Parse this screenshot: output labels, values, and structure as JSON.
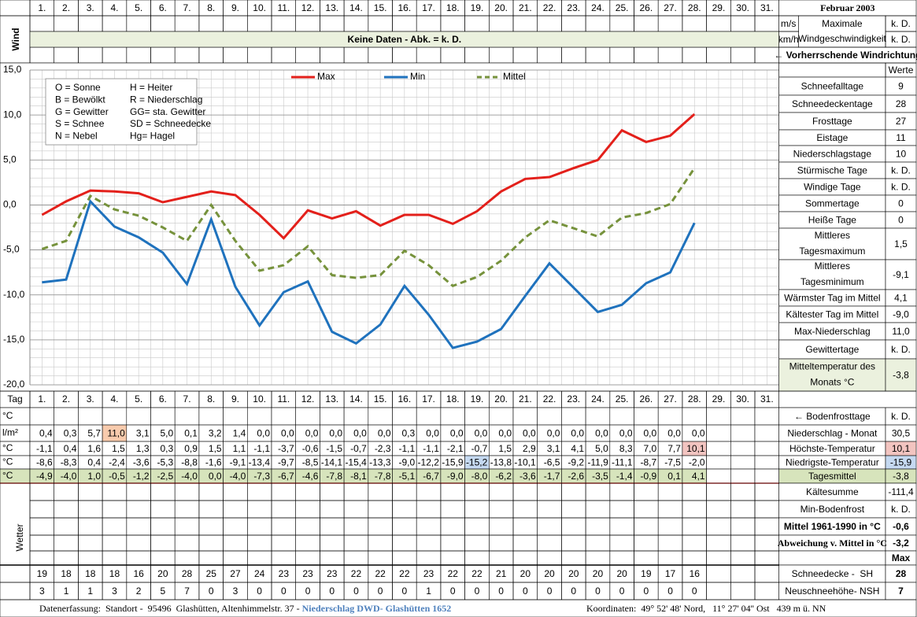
{
  "header": {
    "title": "Februar 2003",
    "days": [
      "1.",
      "2.",
      "3.",
      "4.",
      "5.",
      "6.",
      "7.",
      "8.",
      "9.",
      "10.",
      "11.",
      "12.",
      "13.",
      "14.",
      "15.",
      "16.",
      "17.",
      "18.",
      "19.",
      "20.",
      "21.",
      "22.",
      "23.",
      "24.",
      "25.",
      "26.",
      "27.",
      "28.",
      "29.",
      "30.",
      "31."
    ]
  },
  "wind": {
    "label": "Wind",
    "message": "Keine Daten - Abk. = k. D.",
    "unit_ms": "m/s",
    "unit_kmh": "km/h",
    "max_label": [
      "Maximale",
      "Windgeschwindigkeit"
    ],
    "value_ms": "k. D.",
    "value_kmh": "k. D.",
    "direction": "← Vorherrschende Windrichtung"
  },
  "chart_data": {
    "type": "line",
    "ylim": [
      -20,
      15
    ],
    "yticks": [
      {
        "value": 15,
        "label": "15,0"
      },
      {
        "value": 10,
        "label": "10,0"
      },
      {
        "value": 5,
        "label": "5,0"
      },
      {
        "value": 0,
        "label": "0,0"
      },
      {
        "value": -5,
        "label": "-5,0"
      },
      {
        "value": -10,
        "label": "-10,0"
      },
      {
        "value": -15,
        "label": "-15,0"
      },
      {
        "value": -20,
        "label": "-20,0"
      }
    ],
    "grid": true,
    "legend": "top",
    "categories": [
      "1.",
      "2.",
      "3.",
      "4.",
      "5.",
      "6.",
      "7.",
      "8.",
      "9.",
      "10.",
      "11.",
      "12.",
      "13.",
      "14.",
      "15.",
      "16.",
      "17.",
      "18.",
      "19.",
      "20.",
      "21.",
      "22.",
      "23.",
      "24.",
      "25.",
      "26.",
      "27.",
      "28.",
      "29.",
      "30.",
      "31."
    ],
    "series": [
      {
        "name": "Max",
        "color": "#e3201b",
        "dash": false,
        "values": [
          -1.1,
          0.4,
          1.6,
          1.5,
          1.3,
          0.3,
          0.9,
          1.5,
          1.1,
          -1.1,
          -3.7,
          -0.6,
          -1.5,
          -0.7,
          -2.3,
          -1.1,
          -1.1,
          -2.1,
          -0.7,
          1.5,
          2.9,
          3.1,
          4.1,
          5.0,
          8.3,
          7.0,
          7.7,
          10.1,
          null,
          null,
          null
        ],
        "value_labels": [
          "-1,1",
          "0,4",
          "1,6",
          "1,5",
          "1,3",
          "0,3",
          "0,9",
          "1,5",
          "1,1",
          "-1,1",
          "-3,7",
          "-0,6",
          "-1,5",
          "-0,7",
          "-2,3",
          "-1,1",
          "-1,1",
          "-2,1",
          "-0,7",
          "1,5",
          "2,9",
          "3,1",
          "4,1",
          "5,0",
          "8,3",
          "7,0",
          "7,7",
          "10,1",
          null,
          null,
          null
        ]
      },
      {
        "name": "Min",
        "color": "#1f72bd",
        "dash": false,
        "values": [
          -8.6,
          -8.3,
          0.4,
          -2.4,
          -3.6,
          -5.3,
          -8.8,
          -1.6,
          -9.1,
          -13.4,
          -9.7,
          -8.5,
          -14.1,
          -15.4,
          -13.3,
          -9.0,
          -12.2,
          -15.9,
          -15.2,
          -13.8,
          -10.1,
          -6.5,
          -9.2,
          -11.9,
          -11.1,
          -8.7,
          -7.5,
          -2.0,
          null,
          null,
          null
        ],
        "value_labels": [
          "-8,6",
          "-8,3",
          "0,4",
          "-2,4",
          "-3,6",
          "-5,3",
          "-8,8",
          "-1,6",
          "-9,1",
          "-13,4",
          "-9,7",
          "-8,5",
          "-14,1",
          "-15,4",
          "-13,3",
          "-9,0",
          "-12,2",
          "-15,9",
          "-15,2",
          "-13,8",
          "-10,1",
          "-6,5",
          "-9,2",
          "-11,9",
          "-11,1",
          "-8,7",
          "-7,5",
          "-2,0",
          null,
          null,
          null
        ]
      },
      {
        "name": "Mittel",
        "color": "#76923c",
        "dash": true,
        "values": [
          -4.9,
          -4.0,
          1.0,
          -0.5,
          -1.2,
          -2.5,
          -4.0,
          0.0,
          -4.0,
          -7.3,
          -6.7,
          -4.6,
          -7.8,
          -8.1,
          -7.8,
          -5.1,
          -6.7,
          -9.0,
          -8.0,
          -6.2,
          -3.6,
          -1.7,
          -2.6,
          -3.5,
          -1.4,
          -0.9,
          0.1,
          4.1,
          null,
          null,
          null
        ],
        "value_labels": [
          "-4,9",
          "-4,0",
          "1,0",
          "-0,5",
          "-1,2",
          "-2,5",
          "-4,0",
          "0,0",
          "-4,0",
          "-7,3",
          "-6,7",
          "-4,6",
          "-7,8",
          "-8,1",
          "-7,8",
          "-5,1",
          "-6,7",
          "-9,0",
          "-8,0",
          "-6,2",
          "-3,6",
          "-1,7",
          "-2,6",
          "-3,5",
          "-1,4",
          "-0,9",
          "0,1",
          "4,1",
          null,
          null,
          null
        ]
      }
    ]
  },
  "weather_codes": [
    [
      "O = Sonne",
      "H = Heiter"
    ],
    [
      "B = Bewölkt",
      "R = Niederschlag"
    ],
    [
      "G = Gewitter",
      "GG= sta. Gewitter"
    ],
    [
      "S = Schnee",
      "SD = Schneedecke"
    ],
    [
      "N = Nebel",
      "Hg= Hagel"
    ]
  ],
  "table": {
    "tag_label": "Tag",
    "row_labels": [
      "°C",
      "l/m²",
      "°C",
      "°C",
      "°C"
    ],
    "weather_label": "Wetter",
    "precip": [
      "0,4",
      "0,3",
      "5,7",
      "11,0",
      "3,1",
      "5,0",
      "0,1",
      "3,2",
      "1,4",
      "0,0",
      "0,0",
      "0,0",
      "0,0",
      "0,0",
      "0,0",
      "0,3",
      "0,0",
      "0,0",
      "0,0",
      "0,0",
      "0,0",
      "0,0",
      "0,0",
      "0,0",
      "0,0",
      "0,0",
      "0,0",
      "0,0",
      null,
      null,
      null
    ],
    "snow_depth": [
      19,
      18,
      18,
      18,
      16,
      20,
      28,
      25,
      27,
      24,
      23,
      23,
      23,
      22,
      22,
      22,
      23,
      22,
      22,
      21,
      20,
      20,
      20,
      20,
      20,
      19,
      17,
      16,
      null,
      null,
      null
    ],
    "new_snow": [
      3,
      1,
      1,
      3,
      2,
      5,
      7,
      0,
      3,
      0,
      0,
      0,
      0,
      0,
      0,
      0,
      1,
      0,
      0,
      0,
      0,
      0,
      0,
      0,
      0,
      0,
      0,
      0,
      null,
      null,
      null
    ]
  },
  "stats_header": "Werte",
  "stats": [
    {
      "label": "Schneefalltage",
      "value": "9"
    },
    {
      "label": "Schneedeckentage",
      "value": "28"
    },
    {
      "label": "Frosttage",
      "value": "27"
    },
    {
      "label": "Eistage",
      "value": "11"
    },
    {
      "label": "Niederschlagstage",
      "value": "10"
    },
    {
      "label": "Stürmische Tage",
      "value": "k. D."
    },
    {
      "label": "Windige Tage",
      "value": "k. D."
    },
    {
      "label": "Sommertage",
      "value": "0"
    },
    {
      "label": "Heiße Tage",
      "value": "0"
    },
    {
      "label": [
        "Mittleres",
        "Tagesmaximum"
      ],
      "value": "1,5"
    },
    {
      "label": [
        "Mittleres",
        "Tagesminimum"
      ],
      "value": "-9,1"
    },
    {
      "label": "Wärmster Tag im Mittel",
      "value": "4,1"
    },
    {
      "label": "Kältester Tag im Mittel",
      "value": "-9,0"
    },
    {
      "label": "Max-Niederschlag",
      "value": "11,0"
    },
    {
      "label": "Gewittertage",
      "value": "k. D."
    },
    {
      "label": [
        "Mitteltemperatur des",
        "Monats °C"
      ],
      "value": "-3,8"
    }
  ],
  "lower_stats": [
    {
      "label": "← Bodenfrosttage",
      "value": "k. D."
    },
    {
      "label": "Niederschlag - Monat",
      "value": "30,5"
    },
    {
      "label": "Höchste-Temperatur",
      "value": "10,1"
    },
    {
      "label": "Niedrigste-Temperatur",
      "value": "-15,9"
    },
    {
      "label": "Tagesmittel",
      "value": "-3,8"
    },
    {
      "label": "Kältesumme",
      "value": "-111,4"
    },
    {
      "label": "Min-Bodenfrost",
      "value": "k. D."
    },
    {
      "label": "Mittel 1961-1990 in °C",
      "value": "-0,6"
    },
    {
      "label": "Abweichung v. Mittel in °C",
      "value": "-3,2"
    },
    {
      "label": null,
      "value": "Max"
    },
    {
      "label": "Schneedecke -  SH",
      "value": "28"
    },
    {
      "label": "Neuschneehöhe- NSH",
      "value": "7"
    }
  ],
  "footer": {
    "source": "Datenerfassung:  Standort -  95496  Glashütten, Altenhimmelstr. 37 - ",
    "station": "Niederschlag DWD- Glashütten 1652",
    "coords": "Koordinaten:  49° 52' 48' Nord,   11° 27' 04'' Ost   439 m ü. NN"
  }
}
